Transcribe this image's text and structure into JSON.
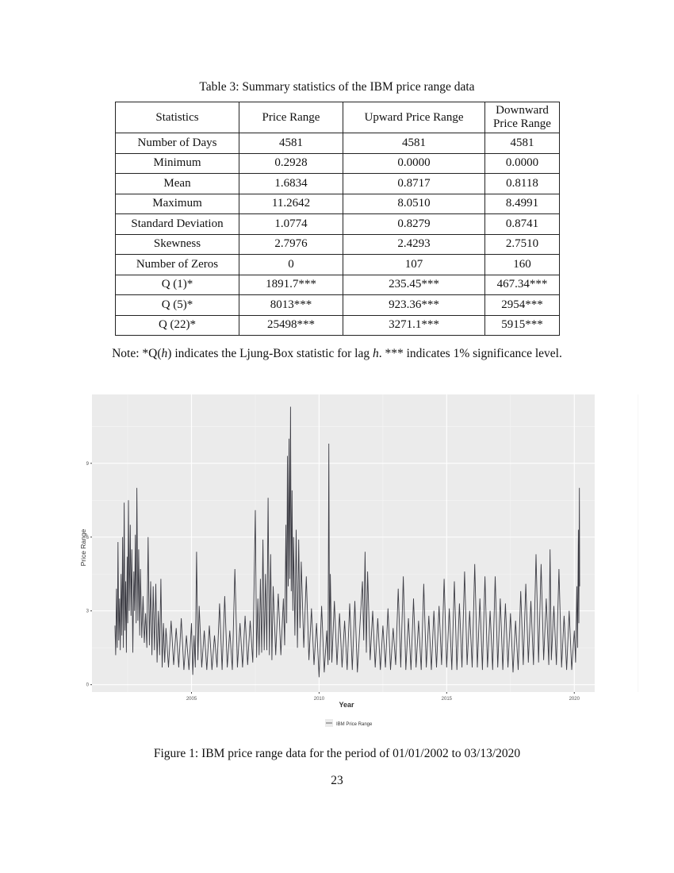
{
  "table": {
    "caption": "Table 3: Summary statistics of the IBM price range data",
    "headers": [
      "Statistics",
      "Price Range",
      "Upward Price Range",
      "Downward Price Range"
    ],
    "rows": [
      [
        "Number of Days",
        "4581",
        "4581",
        "4581"
      ],
      [
        "Minimum",
        "0.2928",
        "0.0000",
        "0.0000"
      ],
      [
        "Mean",
        "1.6834",
        "0.8717",
        "0.8118"
      ],
      [
        "Maximum",
        "11.2642",
        "8.0510",
        "8.4991"
      ],
      [
        "Standard Deviation",
        "1.0774",
        "0.8279",
        "0.8741"
      ],
      [
        "Skewness",
        "2.7976",
        "2.4293",
        "2.7510"
      ],
      [
        "Number of Zeros",
        "0",
        "107",
        "160"
      ],
      [
        "Q (1)*",
        "1891.7***",
        "235.45***",
        "467.34***"
      ],
      [
        "Q (5)*",
        "8013***",
        "923.36***",
        "2954***"
      ],
      [
        "Q (22)*",
        "25498***",
        "3271.1***",
        "5915***"
      ]
    ],
    "note_prefix": "Note: *Q(",
    "note_h": "h",
    "note_mid": ") indicates the Ljung-Box statistic for lag ",
    "note_h2": "h",
    "note_suffix": ". *** indicates 1% significance level."
  },
  "figure": {
    "caption": "Figure 1: IBM price range data for the period of 01/01/2002 to 03/13/2020"
  },
  "page_number": "23",
  "chart_data": {
    "type": "line",
    "xlabel": "Year",
    "ylabel": "Price  Range",
    "xticks": [
      "2005",
      "2010",
      "2015",
      "2020"
    ],
    "yticks": [
      "0",
      "3",
      "6",
      "9"
    ],
    "xlim": [
      2001.1,
      2020.8
    ],
    "ylim": [
      -0.3,
      11.8
    ],
    "grid": true,
    "legend_position": "bottom",
    "series": [
      {
        "name": "IBM Price Range",
        "color": "#3c3c44",
        "points": [
          [
            2002.0,
            2.4
          ],
          [
            2002.03,
            1.2
          ],
          [
            2002.06,
            3.9
          ],
          [
            2002.09,
            1.5
          ],
          [
            2002.12,
            5.8
          ],
          [
            2002.15,
            1.8
          ],
          [
            2002.18,
            3.5
          ],
          [
            2002.21,
            1.4
          ],
          [
            2002.24,
            4.5
          ],
          [
            2002.27,
            2.0
          ],
          [
            2002.3,
            6.0
          ],
          [
            2002.33,
            1.5
          ],
          [
            2002.36,
            7.4
          ],
          [
            2002.39,
            2.2
          ],
          [
            2002.42,
            4.2
          ],
          [
            2002.45,
            1.3
          ],
          [
            2002.48,
            5.2
          ],
          [
            2002.5,
            2.5
          ],
          [
            2002.53,
            7.5
          ],
          [
            2002.56,
            3.0
          ],
          [
            2002.6,
            6.5
          ],
          [
            2002.63,
            2.8
          ],
          [
            2002.66,
            5.5
          ],
          [
            2002.7,
            1.3
          ],
          [
            2002.74,
            4.6
          ],
          [
            2002.77,
            3.0
          ],
          [
            2002.8,
            6.1
          ],
          [
            2002.83,
            2.5
          ],
          [
            2002.86,
            8.0
          ],
          [
            2002.9,
            2.6
          ],
          [
            2002.93,
            5.5
          ],
          [
            2002.97,
            2.0
          ],
          [
            2003.0,
            4.7
          ],
          [
            2003.05,
            1.9
          ],
          [
            2003.1,
            3.6
          ],
          [
            2003.15,
            1.7
          ],
          [
            2003.2,
            2.9
          ],
          [
            2003.25,
            1.5
          ],
          [
            2003.3,
            6.0
          ],
          [
            2003.35,
            1.6
          ],
          [
            2003.4,
            4.2
          ],
          [
            2003.45,
            1.2
          ],
          [
            2003.5,
            4.0
          ],
          [
            2003.55,
            1.4
          ],
          [
            2003.6,
            4.1
          ],
          [
            2003.65,
            0.9
          ],
          [
            2003.7,
            3.0
          ],
          [
            2003.75,
            1.2
          ],
          [
            2003.8,
            4.3
          ],
          [
            2003.85,
            0.7
          ],
          [
            2003.9,
            2.5
          ],
          [
            2003.95,
            0.9
          ],
          [
            2004.0,
            2.3
          ],
          [
            2004.1,
            0.7
          ],
          [
            2004.2,
            2.6
          ],
          [
            2004.3,
            0.8
          ],
          [
            2004.4,
            2.3
          ],
          [
            2004.5,
            0.7
          ],
          [
            2004.6,
            2.7
          ],
          [
            2004.7,
            0.6
          ],
          [
            2004.8,
            2.0
          ],
          [
            2004.9,
            0.6
          ],
          [
            2005.0,
            2.5
          ],
          [
            2005.05,
            0.4
          ],
          [
            2005.1,
            2.0
          ],
          [
            2005.15,
            0.7
          ],
          [
            2005.2,
            5.4
          ],
          [
            2005.25,
            1.0
          ],
          [
            2005.3,
            3.2
          ],
          [
            2005.4,
            0.7
          ],
          [
            2005.5,
            2.2
          ],
          [
            2005.6,
            0.6
          ],
          [
            2005.7,
            2.4
          ],
          [
            2005.8,
            0.6
          ],
          [
            2005.9,
            2.0
          ],
          [
            2006.0,
            0.7
          ],
          [
            2006.1,
            3.3
          ],
          [
            2006.2,
            0.6
          ],
          [
            2006.3,
            3.6
          ],
          [
            2006.4,
            0.7
          ],
          [
            2006.5,
            2.2
          ],
          [
            2006.6,
            0.6
          ],
          [
            2006.7,
            4.7
          ],
          [
            2006.8,
            0.7
          ],
          [
            2006.9,
            2.5
          ],
          [
            2007.0,
            0.7
          ],
          [
            2007.1,
            2.8
          ],
          [
            2007.2,
            0.8
          ],
          [
            2007.3,
            2.6
          ],
          [
            2007.4,
            0.9
          ],
          [
            2007.5,
            7.1
          ],
          [
            2007.55,
            1.1
          ],
          [
            2007.6,
            3.5
          ],
          [
            2007.65,
            1.2
          ],
          [
            2007.7,
            4.3
          ],
          [
            2007.75,
            1.3
          ],
          [
            2007.8,
            5.9
          ],
          [
            2007.85,
            1.4
          ],
          [
            2007.9,
            4.5
          ],
          [
            2007.95,
            1.4
          ],
          [
            2008.0,
            7.6
          ],
          [
            2008.05,
            1.2
          ],
          [
            2008.1,
            5.3
          ],
          [
            2008.15,
            1.0
          ],
          [
            2008.2,
            4.0
          ],
          [
            2008.3,
            1.2
          ],
          [
            2008.4,
            3.7
          ],
          [
            2008.5,
            1.2
          ],
          [
            2008.6,
            3.5
          ],
          [
            2008.65,
            1.6
          ],
          [
            2008.7,
            6.5
          ],
          [
            2008.73,
            2.5
          ],
          [
            2008.76,
            9.3
          ],
          [
            2008.79,
            4.0
          ],
          [
            2008.82,
            10.0
          ],
          [
            2008.85,
            4.3
          ],
          [
            2008.88,
            11.3
          ],
          [
            2008.91,
            3.8
          ],
          [
            2008.94,
            7.9
          ],
          [
            2008.97,
            3.0
          ],
          [
            2009.0,
            6.0
          ],
          [
            2009.05,
            2.0
          ],
          [
            2009.1,
            6.3
          ],
          [
            2009.15,
            1.5
          ],
          [
            2009.2,
            5.9
          ],
          [
            2009.25,
            2.3
          ],
          [
            2009.3,
            5.0
          ],
          [
            2009.4,
            1.5
          ],
          [
            2009.5,
            4.4
          ],
          [
            2009.6,
            1.0
          ],
          [
            2009.7,
            3.1
          ],
          [
            2009.8,
            0.8
          ],
          [
            2009.9,
            2.5
          ],
          [
            2010.0,
            0.3
          ],
          [
            2010.1,
            3.2
          ],
          [
            2010.2,
            0.5
          ],
          [
            2010.3,
            2.2
          ],
          [
            2010.35,
            0.8
          ],
          [
            2010.38,
            9.8
          ],
          [
            2010.41,
            1.0
          ],
          [
            2010.44,
            4.5
          ],
          [
            2010.5,
            0.9
          ],
          [
            2010.6,
            3.4
          ],
          [
            2010.7,
            0.8
          ],
          [
            2010.8,
            2.9
          ],
          [
            2010.9,
            0.7
          ],
          [
            2011.0,
            2.6
          ],
          [
            2011.1,
            0.6
          ],
          [
            2011.2,
            3.3
          ],
          [
            2011.3,
            0.6
          ],
          [
            2011.4,
            3.4
          ],
          [
            2011.5,
            0.5
          ],
          [
            2011.6,
            2.4
          ],
          [
            2011.7,
            4.2
          ],
          [
            2011.75,
            1.8
          ],
          [
            2011.8,
            5.4
          ],
          [
            2011.85,
            1.3
          ],
          [
            2011.9,
            4.6
          ],
          [
            2012.0,
            1.0
          ],
          [
            2012.1,
            3.0
          ],
          [
            2012.2,
            0.7
          ],
          [
            2012.3,
            2.7
          ],
          [
            2012.4,
            0.6
          ],
          [
            2012.5,
            2.4
          ],
          [
            2012.6,
            0.7
          ],
          [
            2012.7,
            3.1
          ],
          [
            2012.8,
            0.6
          ],
          [
            2012.9,
            2.3
          ],
          [
            2013.0,
            0.8
          ],
          [
            2013.1,
            3.9
          ],
          [
            2013.2,
            0.7
          ],
          [
            2013.3,
            4.4
          ],
          [
            2013.4,
            0.6
          ],
          [
            2013.5,
            2.7
          ],
          [
            2013.6,
            0.6
          ],
          [
            2013.7,
            3.5
          ],
          [
            2013.8,
            0.7
          ],
          [
            2013.9,
            2.6
          ],
          [
            2014.0,
            0.6
          ],
          [
            2014.1,
            4.1
          ],
          [
            2014.2,
            0.7
          ],
          [
            2014.3,
            2.8
          ],
          [
            2014.4,
            0.6
          ],
          [
            2014.5,
            3.0
          ],
          [
            2014.6,
            0.7
          ],
          [
            2014.7,
            3.2
          ],
          [
            2014.8,
            0.8
          ],
          [
            2014.9,
            4.3
          ],
          [
            2015.0,
            0.7
          ],
          [
            2015.1,
            3.1
          ],
          [
            2015.2,
            0.6
          ],
          [
            2015.3,
            4.2
          ],
          [
            2015.4,
            0.6
          ],
          [
            2015.5,
            3.3
          ],
          [
            2015.6,
            0.7
          ],
          [
            2015.7,
            4.6
          ],
          [
            2015.8,
            0.8
          ],
          [
            2015.9,
            3.0
          ],
          [
            2016.0,
            0.7
          ],
          [
            2016.1,
            4.9
          ],
          [
            2016.2,
            0.7
          ],
          [
            2016.3,
            3.5
          ],
          [
            2016.4,
            0.6
          ],
          [
            2016.5,
            4.4
          ],
          [
            2016.6,
            0.7
          ],
          [
            2016.7,
            3.0
          ],
          [
            2016.8,
            0.6
          ],
          [
            2016.9,
            4.4
          ],
          [
            2017.0,
            0.7
          ],
          [
            2017.1,
            3.5
          ],
          [
            2017.2,
            0.6
          ],
          [
            2017.3,
            3.3
          ],
          [
            2017.4,
            0.7
          ],
          [
            2017.5,
            2.9
          ],
          [
            2017.6,
            0.5
          ],
          [
            2017.7,
            2.6
          ],
          [
            2017.8,
            0.6
          ],
          [
            2017.9,
            3.8
          ],
          [
            2018.0,
            0.8
          ],
          [
            2018.1,
            4.1
          ],
          [
            2018.2,
            0.9
          ],
          [
            2018.3,
            3.4
          ],
          [
            2018.4,
            0.8
          ],
          [
            2018.5,
            5.3
          ],
          [
            2018.6,
            0.9
          ],
          [
            2018.7,
            4.9
          ],
          [
            2018.8,
            1.0
          ],
          [
            2018.9,
            3.5
          ],
          [
            2019.0,
            0.8
          ],
          [
            2019.05,
            5.5
          ],
          [
            2019.1,
            1.0
          ],
          [
            2019.2,
            3.2
          ],
          [
            2019.3,
            0.8
          ],
          [
            2019.4,
            4.7
          ],
          [
            2019.5,
            0.7
          ],
          [
            2019.6,
            2.8
          ],
          [
            2019.7,
            0.6
          ],
          [
            2019.8,
            3.0
          ],
          [
            2019.9,
            0.6
          ],
          [
            2020.0,
            2.2
          ],
          [
            2020.05,
            0.9
          ],
          [
            2020.1,
            4.0
          ],
          [
            2020.13,
            1.5
          ],
          [
            2020.16,
            6.3
          ],
          [
            2020.18,
            2.5
          ],
          [
            2020.2,
            8.0
          ],
          [
            2020.21,
            4.0
          ]
        ]
      }
    ]
  }
}
